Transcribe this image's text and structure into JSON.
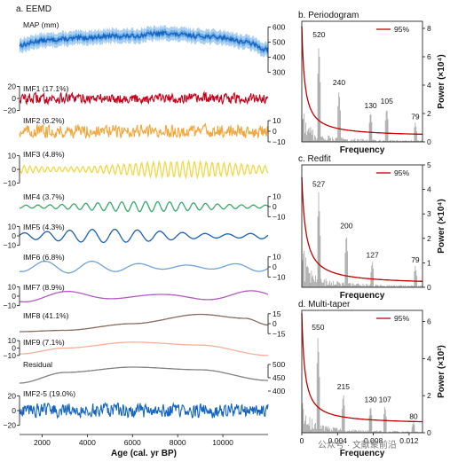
{
  "watermark": "公众号 · 文献聚前沿",
  "chart_data": [
    {
      "type": "line",
      "panel": "a. EEMD",
      "xlabel": "Age (cal. yr BP)",
      "xlim": [
        1000,
        12000
      ],
      "xticks": [
        2000,
        4000,
        6000,
        8000,
        10000
      ],
      "xtick_labels": [
        "2000",
        "4000",
        "6000",
        "8000",
        "10000"
      ],
      "series": [
        {
          "name": "MAP (mm)",
          "color": "#1565c0",
          "band_color": "#64a8e6",
          "axis_side": "right",
          "ylim": [
            250,
            650
          ],
          "ticks": [
            300,
            400,
            500,
            600
          ],
          "tick_labels": [
            "300",
            "400",
            "500",
            "600"
          ],
          "trend": [
            [
              1000,
              480
            ],
            [
              2000,
              510
            ],
            [
              3000,
              520
            ],
            [
              4000,
              530
            ],
            [
              5000,
              540
            ],
            [
              6000,
              540
            ],
            [
              7000,
              555
            ],
            [
              7500,
              560
            ],
            [
              8000,
              550
            ],
            [
              9000,
              540
            ],
            [
              10000,
              530
            ],
            [
              11000,
              500
            ],
            [
              12000,
              450
            ]
          ],
          "amplitude": 30,
          "kind": "band"
        },
        {
          "name": "IMF1 (17.1%)",
          "color": "#c4001a",
          "axis_side": "left",
          "ylim": [
            -25,
            25
          ],
          "ticks": [
            -20,
            0,
            20
          ],
          "tick_labels": [
            "−20",
            "0",
            "20"
          ],
          "amplitude": 10,
          "kind": "noise"
        },
        {
          "name": "IMF2 (6.2%)",
          "color": "#f2a63c",
          "axis_side": "right",
          "ylim": [
            -15,
            15
          ],
          "ticks": [
            -10,
            0,
            10
          ],
          "tick_labels": [
            "−10",
            "0",
            "10"
          ],
          "amplitude": 7,
          "kind": "noise"
        },
        {
          "name": "IMF3 (4.8%)",
          "color": "#f0d84a",
          "axis_side": "left",
          "ylim": [
            -15,
            15
          ],
          "ticks": [
            -10,
            0,
            10
          ],
          "tick_labels": [
            "−10",
            "0",
            "10"
          ],
          "amplitude": 6,
          "period": 260,
          "kind": "osc"
        },
        {
          "name": "IMF4 (3.7%)",
          "color": "#3aaa6a",
          "axis_side": "right",
          "ylim": [
            -15,
            15
          ],
          "ticks": [
            -10,
            0,
            10
          ],
          "tick_labels": [
            "−10",
            "0",
            "10"
          ],
          "amplitude": 5,
          "period": 530,
          "kind": "osc"
        },
        {
          "name": "IMF5 (4.3%)",
          "color": "#1a5fb4",
          "axis_side": "left",
          "ylim": [
            -15,
            15
          ],
          "ticks": [
            -10,
            0,
            10
          ],
          "tick_labels": [
            "−10",
            "0",
            "10"
          ],
          "amplitude": 7,
          "period": 1000,
          "kind": "osc"
        },
        {
          "name": "IMF6 (6.8%)",
          "color": "#6fa3d8",
          "axis_side": "right",
          "ylim": [
            -15,
            15
          ],
          "ticks": [
            -10,
            0,
            10
          ],
          "tick_labels": [
            "−10",
            "0",
            "10"
          ],
          "amplitude": 6,
          "period": 2100,
          "kind": "osc"
        },
        {
          "name": "IMF7 (8.9%)",
          "color": "#b05cc0",
          "axis_side": "left",
          "ylim": [
            -15,
            15
          ],
          "ticks": [
            -10,
            0,
            10
          ],
          "tick_labels": [
            "−10",
            "0",
            "10"
          ],
          "amplitude": 6,
          "period": 4000,
          "kind": "osc"
        },
        {
          "name": "IMF8 (41.1%)",
          "color": "#8a6a5e",
          "axis_side": "right",
          "ylim": [
            -20,
            20
          ],
          "ticks": [
            -15,
            0,
            15
          ],
          "tick_labels": [
            "−15",
            "0",
            "15"
          ],
          "points": [
            [
              1000,
              -12
            ],
            [
              3000,
              -10
            ],
            [
              6000,
              0
            ],
            [
              9000,
              14
            ],
            [
              11000,
              8
            ],
            [
              12000,
              -2
            ]
          ],
          "kind": "curve"
        },
        {
          "name": "IMF9 (7.1%)",
          "color": "#f4b09a",
          "axis_side": "left",
          "ylim": [
            -15,
            15
          ],
          "ticks": [
            -10,
            0,
            10
          ],
          "tick_labels": [
            "−10",
            "0",
            "10"
          ],
          "points": [
            [
              1000,
              -8
            ],
            [
              3000,
              0
            ],
            [
              6000,
              8
            ],
            [
              9000,
              4
            ],
            [
              12000,
              -10
            ]
          ],
          "kind": "curve"
        },
        {
          "name": "Residual",
          "color": "#808080",
          "axis_side": "right",
          "ylim": [
            410,
            520
          ],
          "ticks": [
            450,
            500
          ],
          "tick_labels": [
            "450",
            "500"
          ],
          "points": [
            [
              1000,
              430
            ],
            [
              3000,
              470
            ],
            [
              6000,
              490
            ],
            [
              9000,
              480
            ],
            [
              12000,
              440
            ]
          ],
          "kind": "curve"
        },
        {
          "name": "IMF2-5 (19.0%)",
          "color": "#1565c0",
          "axis_side": "left",
          "ylim": [
            -30,
            30
          ],
          "ticks": [
            -20,
            0,
            20
          ],
          "tick_labels": [
            "−20",
            "0",
            "20"
          ],
          "amplitude": 11,
          "kind": "noise"
        }
      ],
      "extra_right_tick": "400"
    },
    {
      "type": "bar",
      "panel": "b. Periodogram",
      "xlabel": "Frequency",
      "ylabel": "Power (×10⁴)",
      "ylim": [
        0,
        8.5
      ],
      "yticks": [
        0,
        2,
        4,
        6,
        8
      ],
      "ytick_labels": [
        "0",
        "2",
        "4",
        "6",
        "8"
      ],
      "legend": "95%",
      "legend_position": "top-right",
      "bar_color": "#a6a6a6",
      "line_color": "#c00000",
      "threshold": {
        "a": 7.8,
        "k": 300,
        "c": 0.35
      },
      "peaks": [
        {
          "label": "520",
          "freq": 0.00192,
          "value": 7.2
        },
        {
          "label": "240",
          "freq": 0.00417,
          "value": 3.8
        },
        {
          "label": "130",
          "freq": 0.0077,
          "value": 2.2
        },
        {
          "label": "105",
          "freq": 0.0095,
          "value": 2.5
        },
        {
          "label": "79",
          "freq": 0.0127,
          "value": 1.4
        }
      ]
    },
    {
      "type": "bar",
      "panel": "c. Redfit",
      "xlabel": "Frequency",
      "ylabel": "Power (×10⁴)",
      "ylim": [
        0,
        5
      ],
      "yticks": [
        0,
        1,
        2,
        3,
        4,
        5
      ],
      "ytick_labels": [
        "0",
        "1",
        "2",
        "3",
        "4",
        "5"
      ],
      "legend": "95%",
      "legend_position": "top-right",
      "bar_color": "#a6a6a6",
      "line_color": "#c00000",
      "threshold": {
        "a": 4.4,
        "k": 220,
        "c": 0.1
      },
      "peaks": [
        {
          "label": "527",
          "freq": 0.0019,
          "value": 4.0
        },
        {
          "label": "200",
          "freq": 0.005,
          "value": 2.3
        },
        {
          "label": "127",
          "freq": 0.0079,
          "value": 1.1
        },
        {
          "label": "79",
          "freq": 0.0127,
          "value": 0.9
        }
      ]
    },
    {
      "type": "bar",
      "panel": "d. Multi-taper",
      "xlabel": "Frequency",
      "ylabel": "Power (×10²)",
      "ylim": [
        0,
        6.6
      ],
      "yticks": [
        0,
        2,
        4,
        6
      ],
      "ytick_labels": [
        "0",
        "2",
        "4",
        "6"
      ],
      "xlim": [
        0,
        0.0135
      ],
      "xticks": [
        0,
        0.004,
        0.008,
        0.012
      ],
      "xtick_labels": [
        "0",
        "0.004",
        "0.008",
        "0.012"
      ],
      "legend": "95%",
      "legend_position": "top-right",
      "bar_color": "#a6a6a6",
      "line_color": "#c00000",
      "threshold": {
        "a": 6.0,
        "k": 300,
        "c": 0.45
      },
      "peaks": [
        {
          "label": "550",
          "freq": 0.00182,
          "value": 5.4
        },
        {
          "label": "215",
          "freq": 0.00465,
          "value": 2.2
        },
        {
          "label": "130",
          "freq": 0.0077,
          "value": 1.5
        },
        {
          "label": "107",
          "freq": 0.0093,
          "value": 1.5
        },
        {
          "label": "80",
          "freq": 0.0125,
          "value": 0.6
        }
      ]
    }
  ]
}
